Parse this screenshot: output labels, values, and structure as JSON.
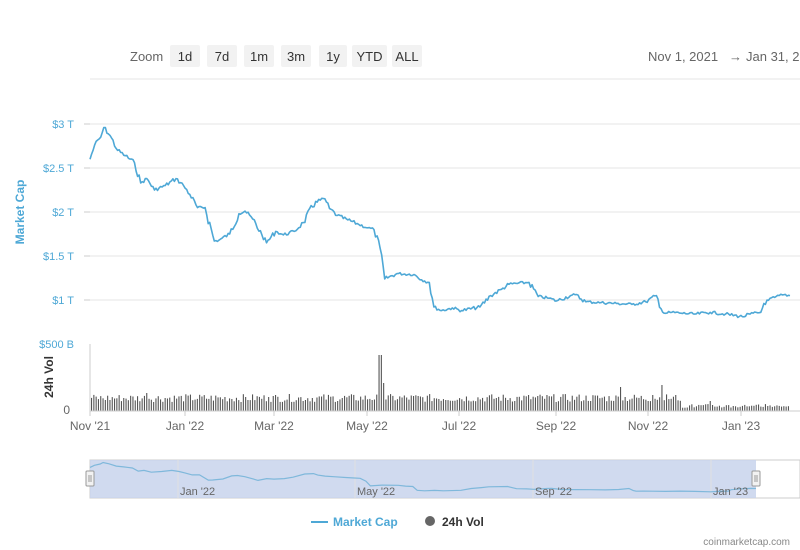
{
  "toolbar": {
    "zoom_label": "Zoom",
    "zoom_buttons": [
      "1d",
      "7d",
      "1m",
      "3m",
      "1y",
      "YTD",
      "ALL"
    ],
    "range_from": "Nov 1, 2021",
    "range_arrow": "→",
    "range_to": "Jan 31, 2"
  },
  "chart_data": {
    "type": "line",
    "x_axis_labels": [
      "Nov '21",
      "Jan '22",
      "Mar '22",
      "May '22",
      "Jul '22",
      "Sep '22",
      "Nov '22",
      "Jan '23"
    ],
    "navigator_labels": [
      "Jan '22",
      "May '22",
      "Sep '22",
      "Jan '23"
    ],
    "series": [
      {
        "name": "Market Cap",
        "color": "#4ea8d6",
        "ylabel": "Market Cap",
        "yticks": [
          "$500 B",
          "$1 T",
          "$1.5 T",
          "$2 T",
          "$2.5 T",
          "$3 T"
        ],
        "ylim": [
          500,
          3000
        ],
        "unit": "billion USD",
        "x": [
          "2021-11-01",
          "2021-11-04",
          "2021-11-08",
          "2021-11-10",
          "2021-11-14",
          "2021-11-19",
          "2021-11-24",
          "2021-11-30",
          "2021-12-04",
          "2021-12-08",
          "2021-12-13",
          "2021-12-20",
          "2021-12-27",
          "2022-01-01",
          "2022-01-05",
          "2022-01-10",
          "2022-01-15",
          "2022-01-21",
          "2022-01-24",
          "2022-01-31",
          "2022-02-06",
          "2022-02-10",
          "2022-02-15",
          "2022-02-21",
          "2022-02-24",
          "2022-03-02",
          "2022-03-07",
          "2022-03-14",
          "2022-03-20",
          "2022-03-28",
          "2022-04-03",
          "2022-04-06",
          "2022-04-11",
          "2022-04-18",
          "2022-04-25",
          "2022-05-01",
          "2022-05-05",
          "2022-05-09",
          "2022-05-12",
          "2022-05-20",
          "2022-05-31",
          "2022-06-05",
          "2022-06-10",
          "2022-06-13",
          "2022-06-18",
          "2022-06-25",
          "2022-07-01",
          "2022-07-13",
          "2022-07-20",
          "2022-07-27",
          "2022-08-01",
          "2022-08-14",
          "2022-08-20",
          "2022-08-27",
          "2022-09-01",
          "2022-09-10",
          "2022-09-13",
          "2022-09-20",
          "2022-09-30",
          "2022-10-10",
          "2022-10-20",
          "2022-10-29",
          "2022-11-05",
          "2022-11-08",
          "2022-11-10",
          "2022-11-15",
          "2022-11-21",
          "2022-11-30",
          "2022-12-10",
          "2022-12-20",
          "2022-12-31",
          "2023-01-05",
          "2023-01-12",
          "2023-01-14",
          "2023-01-21",
          "2023-01-27",
          "2023-01-31"
        ],
        "values": [
          2600,
          2760,
          2850,
          2960,
          2870,
          2700,
          2640,
          2560,
          2330,
          2380,
          2250,
          2300,
          2380,
          2300,
          2200,
          2050,
          2050,
          1670,
          1680,
          1750,
          1980,
          2010,
          1920,
          1740,
          1650,
          1780,
          1740,
          1780,
          1880,
          2120,
          2150,
          2040,
          1960,
          1910,
          1860,
          1820,
          1800,
          1590,
          1240,
          1300,
          1290,
          1230,
          1200,
          920,
          880,
          910,
          880,
          920,
          1050,
          1120,
          1180,
          1200,
          1040,
          1020,
          990,
          1050,
          1060,
          980,
          970,
          960,
          950,
          980,
          1050,
          900,
          850,
          860,
          850,
          840,
          860,
          840,
          810,
          840,
          860,
          960,
          1030,
          1060,
          1050
        ]
      },
      {
        "name": "24h Vol",
        "color": "#333333",
        "ylabel": "24h Vol",
        "yticks": [
          "0"
        ],
        "ylim": [
          0,
          300
        ]
      }
    ],
    "grid": true,
    "legend_position": "bottom"
  },
  "navigator": {
    "left_handle": "left-range-handle",
    "right_handle": "right-range-handle"
  },
  "credit": "coinmarketcap.com"
}
